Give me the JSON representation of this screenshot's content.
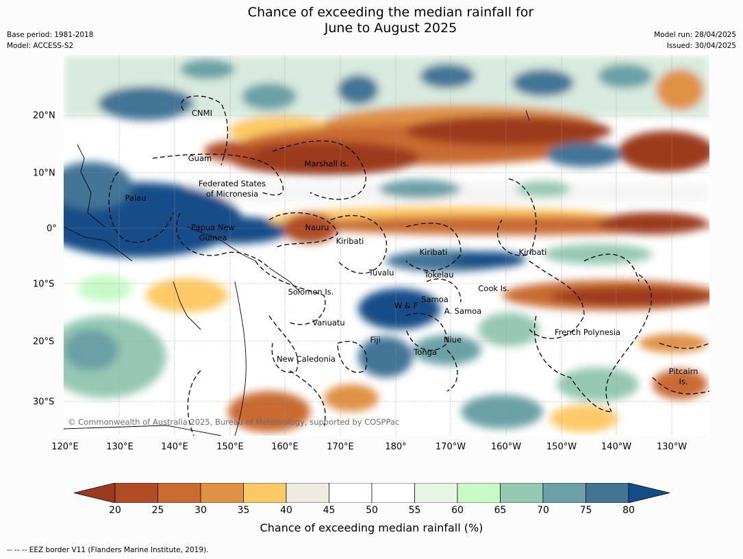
{
  "title_line1": "Chance of exceeding the median rainfall for",
  "title_line2": "June to August 2025",
  "meta": {
    "base_period": "Base period: 1981-2018",
    "model": "Model: ACCESS-S2",
    "model_run": "Model run: 28/04/2025",
    "issued": "Issued: 30/04/2025"
  },
  "lon_ticks": [
    "120°E",
    "130°E",
    "140°E",
    "150°E",
    "160°E",
    "170°E",
    "180°",
    "170°W",
    "160°W",
    "150°W",
    "140°W",
    "130°W"
  ],
  "lat_ticks": [
    "20°N",
    "10°N",
    "0°",
    "10°S",
    "20°S",
    "30°S"
  ],
  "regions": [
    "CNMI",
    "Guam",
    "Marshall Is.",
    "Federated States",
    "of Micronesia",
    "Palau",
    "Papua New",
    "Guinea",
    "Nauru",
    "Kiribati",
    "Kiribati",
    "Kiribati",
    "Tuvalu",
    "Tokelau",
    "Solomon Is.",
    "Cook Is.",
    "W & F",
    "Samoa",
    "A. Samoa",
    "Vanuatu",
    "Fiji",
    "Niue",
    "Tonga",
    "French Polynesia",
    "New Caledonia",
    "Pitcairn",
    "Is."
  ],
  "copyright": "© Commonwealth of Australia 2025, Bureau of Meteorology, supported by COSPPac",
  "colorbar": {
    "ticks": [
      "20",
      "25",
      "30",
      "35",
      "40",
      "45",
      "50",
      "55",
      "60",
      "65",
      "70",
      "75",
      "80"
    ],
    "colors": [
      "#9c3a1d",
      "#b04d25",
      "#c96b32",
      "#e09244",
      "#fcc966",
      "#eeebe5",
      "#ffffff",
      "#ffffff",
      "#e6f5e4",
      "#c8fac8",
      "#96c8b4",
      "#6aa0a6",
      "#437496",
      "#134e88"
    ],
    "label": "Chance of exceeding median rainfall (%)"
  },
  "footnote": "--  --  -- EEZ border V11 (Flanders Marine Institute, 2019)."
}
